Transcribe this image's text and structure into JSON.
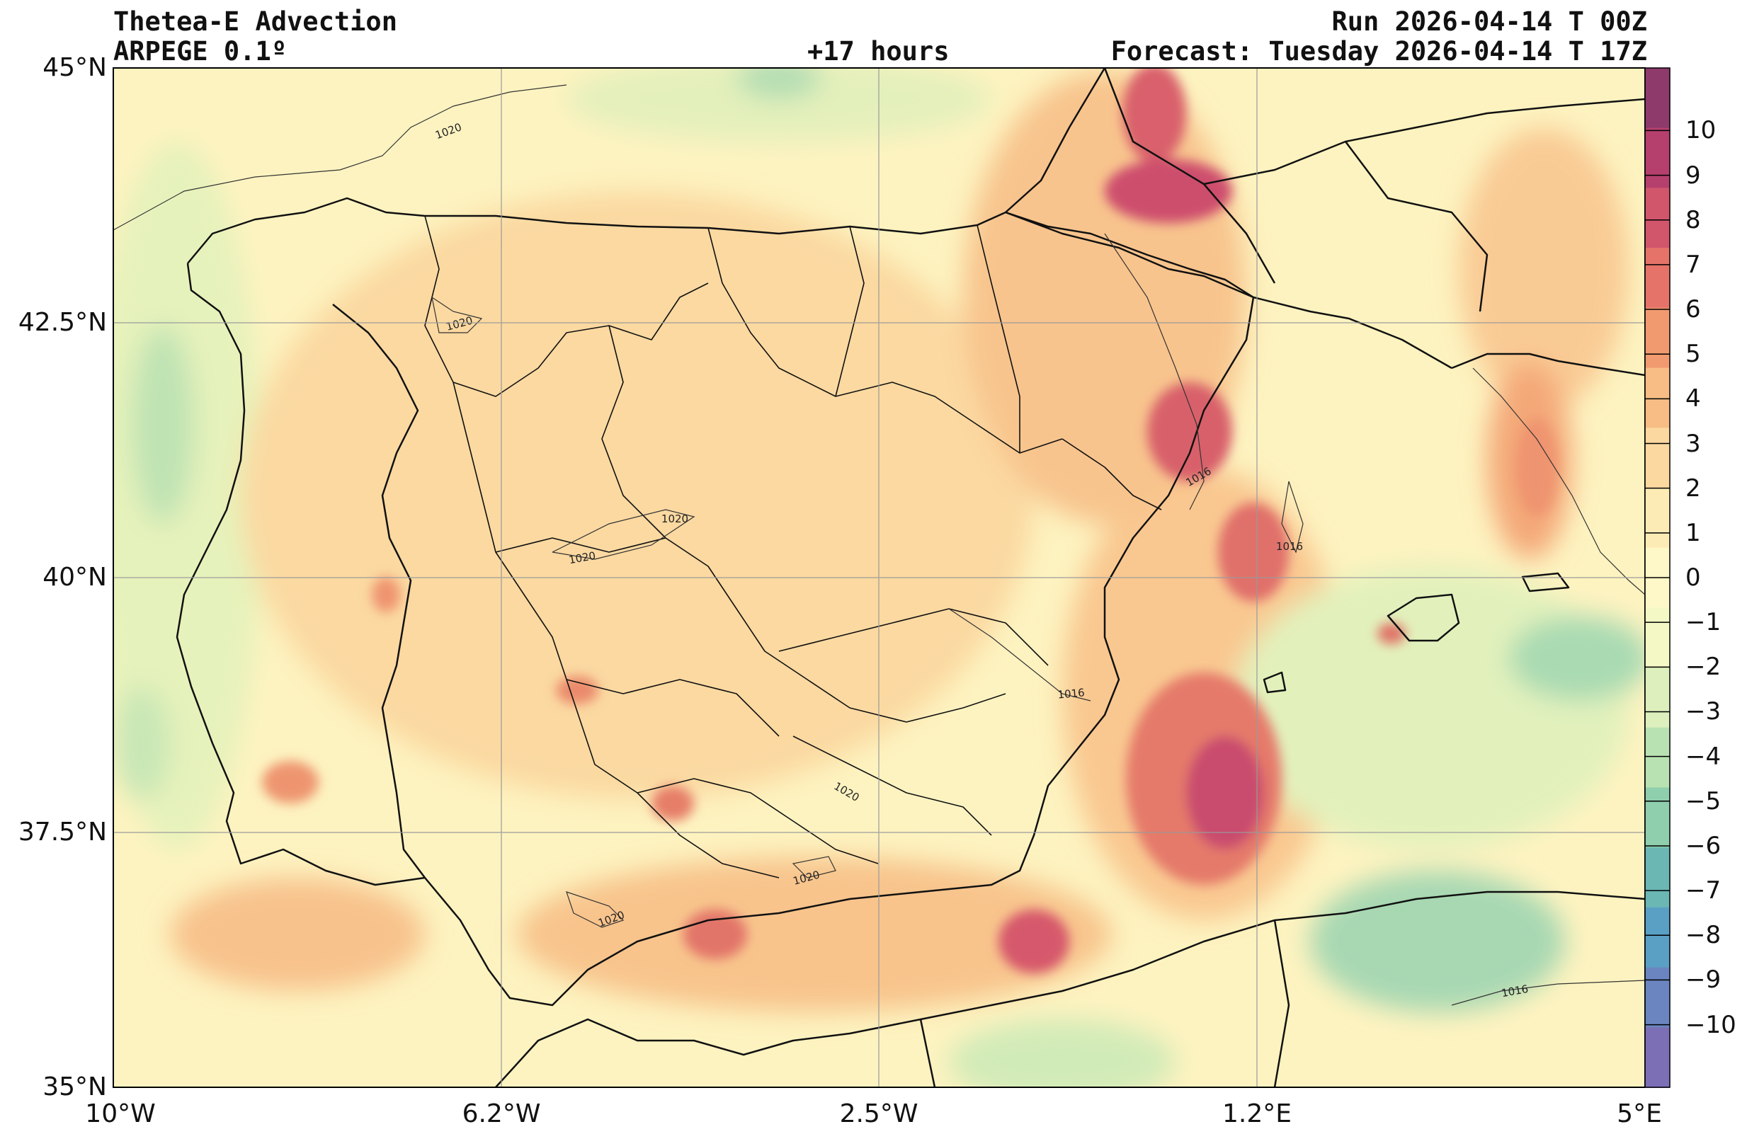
{
  "header": {
    "title": "Thetea-E Advection",
    "model": "ARPEGE 0.1º",
    "lead_time": "+17 hours",
    "run": "Run 2026-04-14 T 00Z",
    "forecast": "Forecast: Tuesday 2026-04-14 T 17Z"
  },
  "axes": {
    "lat_ticks": [
      "45°N",
      "42.5°N",
      "40°N",
      "37.5°N",
      "35°N"
    ],
    "lon_ticks": [
      "10°W",
      "6.2°W",
      "2.5°W",
      "1.2°E",
      "5°E"
    ]
  },
  "colorbar": {
    "ticks": [
      "10",
      "9",
      "8",
      "7",
      "6",
      "5",
      "4",
      "3",
      "2",
      "1",
      "0",
      "−1",
      "−2",
      "−3",
      "−4",
      "−5",
      "−6",
      "−7",
      "−8",
      "−9",
      "−10"
    ],
    "colors": [
      "#8e3a6b",
      "#b5406e",
      "#d1566c",
      "#e5736a",
      "#f19a6f",
      "#f7bd84",
      "#fbd8a0",
      "#fdebb6",
      "#fef7c8",
      "#f3f8c5",
      "#dcefbc",
      "#b9e2b2",
      "#8fcfad",
      "#6ab7b4",
      "#5aa0c4",
      "#6a85c0",
      "#7c6fb6"
    ]
  },
  "isobars": [
    "1020",
    "1020",
    "1020",
    "1020",
    "1016",
    "1016",
    "1016",
    "1020",
    "1020",
    "1020",
    "1016"
  ]
}
